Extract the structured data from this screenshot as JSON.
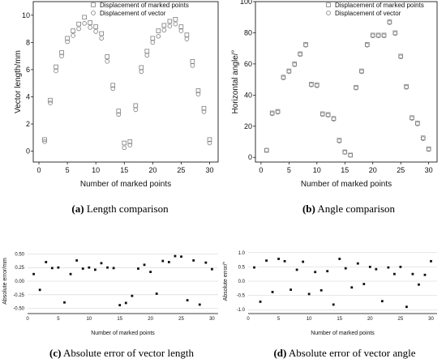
{
  "charts": [
    {
      "id": "a",
      "caption_letter": "(a)",
      "caption_text": "Length comparison",
      "chart_data": {
        "type": "scatter",
        "xlabel": "Number of marked points",
        "ylabel": "Vector length/mm",
        "xlim": [
          -1,
          31.5
        ],
        "ylim": [
          -0.8,
          11
        ],
        "xticks": [
          0,
          5,
          10,
          15,
          20,
          25,
          30
        ],
        "yticks": [
          0,
          2,
          4,
          6,
          8,
          10
        ],
        "grid": false,
        "legend_position": "top-right",
        "series": [
          {
            "name": "Displacement of marked points",
            "marker": "square",
            "x": [
              1,
              2,
              3,
              4,
              5,
              6,
              7,
              8,
              9,
              10,
              11,
              12,
              13,
              14,
              15,
              16,
              17,
              18,
              19,
              20,
              21,
              22,
              23,
              24,
              25,
              26,
              27,
              28,
              29,
              30
            ],
            "y": [
              0.85,
              3.75,
              6.2,
              7.25,
              8.3,
              8.85,
              9.35,
              9.85,
              9.45,
              9.15,
              8.65,
              6.95,
              4.85,
              2.95,
              0.6,
              0.7,
              3.35,
              6.15,
              7.35,
              8.3,
              8.85,
              9.25,
              9.55,
              9.7,
              9.15,
              8.55,
              6.6,
              4.45,
              3.15,
              0.85
            ]
          },
          {
            "name": "Displacement of vector",
            "marker": "circle",
            "x": [
              1,
              2,
              3,
              4,
              5,
              6,
              7,
              8,
              9,
              10,
              11,
              12,
              13,
              14,
              15,
              16,
              17,
              18,
              19,
              20,
              21,
              22,
              23,
              24,
              25,
              26,
              27,
              28,
              29,
              30
            ],
            "y": [
              0.7,
              3.55,
              5.9,
              7.0,
              8.05,
              8.5,
              9.0,
              9.4,
              9.1,
              8.8,
              8.3,
              6.6,
              4.6,
              2.7,
              0.25,
              0.45,
              3.05,
              5.85,
              7.05,
              8.0,
              8.45,
              8.9,
              9.2,
              9.35,
              8.85,
              8.25,
              6.3,
              4.2,
              2.9,
              0.6
            ]
          }
        ]
      }
    },
    {
      "id": "b",
      "caption_letter": "(b)",
      "caption_text": "Angle comparison",
      "chart_data": {
        "type": "scatter",
        "xlabel": "Number of marked points",
        "ylabel": "Horizontal angle/°",
        "xlim": [
          -1,
          31.5
        ],
        "ylim": [
          -3,
          100
        ],
        "xticks": [
          0,
          5,
          10,
          15,
          20,
          25,
          30
        ],
        "yticks": [
          0,
          20,
          40,
          60,
          80,
          100
        ],
        "grid": false,
        "legend_position": "top-right",
        "series": [
          {
            "name": "Displacement of marked points",
            "marker": "square",
            "x": [
              1,
              2,
              3,
              4,
              5,
              6,
              7,
              8,
              9,
              10,
              11,
              12,
              13,
              14,
              15,
              16,
              17,
              18,
              19,
              20,
              21,
              22,
              23,
              24,
              25,
              26,
              27,
              28,
              29,
              30
            ],
            "y": [
              4.5,
              28.5,
              29.5,
              51.5,
              55.5,
              60,
              66.5,
              72.5,
              47,
              46.5,
              28,
              27.5,
              25,
              11,
              3.5,
              1.5,
              45,
              55.5,
              72.5,
              78.5,
              78.5,
              78.5,
              87,
              80,
              65,
              45.5,
              25.5,
              22,
              12.5,
              5.5
            ]
          },
          {
            "name": "Displacement of vector",
            "marker": "circle",
            "x": [
              1,
              2,
              3,
              4,
              5,
              6,
              7,
              8,
              9,
              10,
              11,
              12,
              13,
              14,
              15,
              16,
              17,
              18,
              19,
              20,
              21,
              22,
              23,
              24,
              25,
              26,
              27,
              28,
              29,
              30
            ],
            "y": [
              4.7,
              28,
              29,
              51,
              55,
              59.5,
              66,
              72,
              46.5,
              46,
              27.5,
              27,
              24.5,
              10.5,
              3.2,
              1.3,
              44.5,
              55,
              72,
              78,
              78,
              78,
              86.5,
              79.5,
              64.5,
              45,
              25,
              21.5,
              12,
              5
            ]
          }
        ]
      }
    },
    {
      "id": "c",
      "caption_letter": "(c)",
      "caption_text": "Absolute error of vector length",
      "chart_data": {
        "type": "scatter",
        "xlabel": "Number of marked points",
        "ylabel": "Absolute error/mm",
        "xlim": [
          0,
          31
        ],
        "ylim": [
          -0.55,
          0.55
        ],
        "xticks": [
          0,
          5,
          10,
          15,
          20,
          25,
          30
        ],
        "yticks": [
          0.5,
          0.25,
          0,
          -0.25,
          -0.5
        ],
        "ytick_labels": [
          "0.50",
          "0.25",
          "0.00",
          "-0.25",
          "-0.50"
        ],
        "grid": true,
        "series": [
          {
            "name": "",
            "marker": "filled-square",
            "x": [
              1,
              2,
              3,
              4,
              5,
              6,
              7,
              8,
              9,
              10,
              11,
              12,
              13,
              14,
              15,
              16,
              17,
              18,
              19,
              20,
              21,
              22,
              23,
              24,
              25,
              26,
              27,
              28,
              29,
              30
            ],
            "y": [
              0.13,
              -0.16,
              0.35,
              0.24,
              0.25,
              -0.39,
              0.13,
              0.38,
              0.23,
              0.25,
              0.21,
              0.33,
              0.25,
              0.24,
              -0.44,
              -0.4,
              -0.27,
              0.23,
              0.3,
              0.17,
              -0.23,
              0.37,
              0.35,
              0.46,
              0.45,
              -0.35,
              0.38,
              -0.43,
              0.34,
              0.22
            ]
          }
        ]
      }
    },
    {
      "id": "d",
      "caption_letter": "(d)",
      "caption_text": "Absolute error of vector angle",
      "chart_data": {
        "type": "scatter",
        "xlabel": "Number of marked points",
        "ylabel": "Absolute error/°",
        "xlim": [
          0,
          31
        ],
        "ylim": [
          -1.05,
          1.05
        ],
        "xticks": [
          0,
          5,
          10,
          15,
          20,
          25,
          30
        ],
        "yticks": [
          1.0,
          0.5,
          0,
          -0.5,
          -1.0
        ],
        "ytick_labels": [
          "1.0",
          "0.5",
          "0.0",
          "-0.5",
          "-1.0"
        ],
        "grid": true,
        "series": [
          {
            "name": "",
            "marker": "filled-square",
            "x": [
              1,
              2,
              3,
              4,
              5,
              6,
              7,
              8,
              9,
              10,
              11,
              12,
              13,
              14,
              15,
              16,
              17,
              18,
              19,
              20,
              21,
              22,
              23,
              24,
              25,
              26,
              27,
              28,
              29,
              30
            ],
            "y": [
              0.48,
              -0.72,
              0.72,
              -0.38,
              0.78,
              0.7,
              -0.3,
              0.4,
              0.68,
              -0.45,
              0.32,
              -0.32,
              0.35,
              -0.82,
              0.78,
              0.45,
              -0.22,
              0.62,
              -0.1,
              0.5,
              0.42,
              -0.7,
              0.48,
              0.25,
              0.5,
              -0.9,
              0.25,
              -0.12,
              0.22,
              0.7
            ]
          }
        ]
      }
    }
  ]
}
